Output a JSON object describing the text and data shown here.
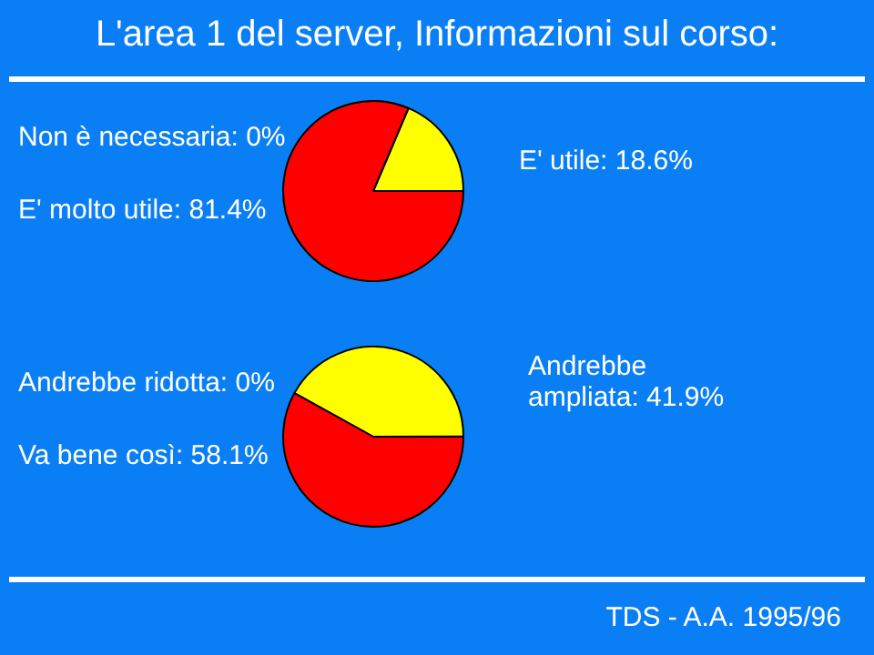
{
  "chart_data": [
    {
      "type": "pie",
      "title": "L'area 1 del server, Informazioni sul corso:",
      "categories": [
        "Non è necessaria: 0%",
        "E' utile: 18.6%",
        "E' molto utile: 81.4%"
      ],
      "values": [
        0,
        18.6,
        81.4
      ],
      "colors": [
        "#ff0000",
        "#ffff00",
        "#ff0000"
      ],
      "legend": false
    },
    {
      "type": "pie",
      "categories": [
        "Andrebbe ridotta: 0%",
        "Andrebbe ampliata: 41.9%",
        "Va bene così: 58.1%"
      ],
      "values": [
        0,
        41.9,
        58.1
      ],
      "colors": [
        "#ff0000",
        "#ffff00",
        "#ff0000"
      ],
      "legend": false,
      "annotations": [
        "TDS - A.A. 1995/96"
      ]
    }
  ]
}
